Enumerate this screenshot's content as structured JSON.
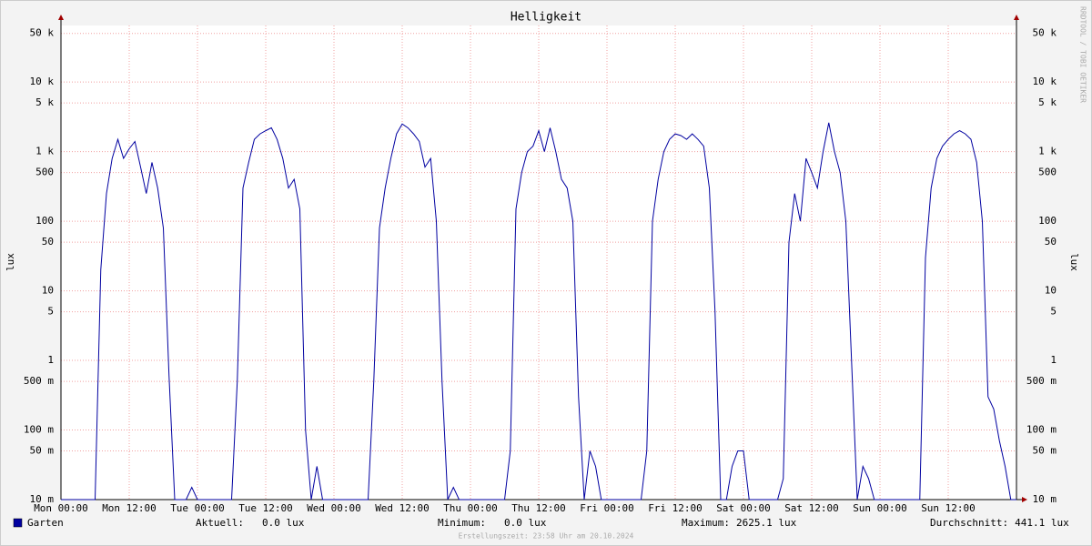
{
  "chart_data": {
    "type": "line",
    "title": "Helligkeit",
    "y_label": "lux",
    "watermark": "RRDTOOL / TOBI OETIKER",
    "footer": "Erstellungszeit: 23:58 Uhr am 20.10.2024",
    "log_scale": true,
    "grid": true,
    "xlim": [
      0,
      168
    ],
    "ylim": [
      0.01,
      65000
    ],
    "xticks": [
      {
        "value": 0,
        "label": "Mon 00:00"
      },
      {
        "value": 12,
        "label": "Mon 12:00"
      },
      {
        "value": 24,
        "label": "Tue 00:00"
      },
      {
        "value": 36,
        "label": "Tue 12:00"
      },
      {
        "value": 48,
        "label": "Wed 00:00"
      },
      {
        "value": 60,
        "label": "Wed 12:00"
      },
      {
        "value": 72,
        "label": "Thu 00:00"
      },
      {
        "value": 84,
        "label": "Thu 12:00"
      },
      {
        "value": 96,
        "label": "Fri 00:00"
      },
      {
        "value": 108,
        "label": "Fri 12:00"
      },
      {
        "value": 120,
        "label": "Sat 00:00"
      },
      {
        "value": 132,
        "label": "Sat 12:00"
      },
      {
        "value": 144,
        "label": "Sun 00:00"
      },
      {
        "value": 156,
        "label": "Sun 12:00"
      }
    ],
    "yticks": [
      {
        "value": 0.01,
        "label": "10 m"
      },
      {
        "value": 0.05,
        "label": "50 m"
      },
      {
        "value": 0.1,
        "label": "100 m"
      },
      {
        "value": 0.5,
        "label": "500 m"
      },
      1,
      5,
      10,
      50,
      100,
      500,
      {
        "value": 1000,
        "label": "1 k"
      },
      {
        "value": 5000,
        "label": "5 k"
      },
      {
        "value": 10000,
        "label": "10 k"
      },
      {
        "value": 50000,
        "label": "50 k"
      }
    ],
    "x": [
      0,
      1,
      2,
      3,
      4,
      5,
      6,
      7,
      8,
      9,
      10,
      11,
      12,
      13,
      14,
      15,
      16,
      17,
      18,
      19,
      20,
      21,
      22,
      23,
      24,
      25,
      26,
      27,
      28,
      29,
      30,
      31,
      32,
      33,
      34,
      35,
      36,
      37,
      38,
      39,
      40,
      41,
      42,
      43,
      44,
      45,
      46,
      47,
      48,
      49,
      50,
      51,
      52,
      53,
      54,
      55,
      56,
      57,
      58,
      59,
      60,
      61,
      62,
      63,
      64,
      65,
      66,
      67,
      68,
      69,
      70,
      71,
      72,
      73,
      74,
      75,
      76,
      77,
      78,
      79,
      80,
      81,
      82,
      83,
      84,
      85,
      86,
      87,
      88,
      89,
      90,
      91,
      92,
      93,
      94,
      95,
      96,
      97,
      98,
      99,
      100,
      101,
      102,
      103,
      104,
      105,
      106,
      107,
      108,
      109,
      110,
      111,
      112,
      113,
      114,
      115,
      116,
      117,
      118,
      119,
      120,
      121,
      122,
      123,
      124,
      125,
      126,
      127,
      128,
      129,
      130,
      131,
      132,
      133,
      134,
      135,
      136,
      137,
      138,
      139,
      140,
      141,
      142,
      143,
      144,
      145,
      146,
      147,
      148,
      149,
      150,
      151,
      152,
      153,
      154,
      155,
      156,
      157,
      158,
      159,
      160,
      161,
      162,
      163,
      164,
      165,
      166,
      167,
      168
    ],
    "series": [
      {
        "name": "Garten",
        "color": "#0000a0",
        "values": [
          0.01,
          0.01,
          0.01,
          0.01,
          0.01,
          0.01,
          0.01,
          20,
          250,
          800,
          1500,
          800,
          1100,
          1400,
          600,
          250,
          700,
          300,
          80,
          0.6,
          0.01,
          0.01,
          0.01,
          0.015,
          0.01,
          0.01,
          0.01,
          0.01,
          0.01,
          0.01,
          0.01,
          0.5,
          300,
          700,
          1500,
          1800,
          2000,
          2200,
          1500,
          800,
          300,
          400,
          150,
          0.1,
          0.01,
          0.03,
          0.01,
          0.01,
          0.01,
          0.01,
          0.01,
          0.01,
          0.01,
          0.01,
          0.01,
          0.5,
          80,
          300,
          800,
          1800,
          2500,
          2200,
          1800,
          1400,
          600,
          800,
          100,
          0.5,
          0.01,
          0.015,
          0.01,
          0.01,
          0.01,
          0.01,
          0.01,
          0.01,
          0.01,
          0.01,
          0.01,
          0.05,
          150,
          500,
          1000,
          1200,
          2000,
          1000,
          2200,
          1000,
          400,
          300,
          100,
          0.3,
          0.01,
          0.05,
          0.03,
          0.01,
          0.01,
          0.01,
          0.01,
          0.01,
          0.01,
          0.01,
          0.01,
          0.05,
          100,
          400,
          1000,
          1500,
          1800,
          1700,
          1500,
          1800,
          1500,
          1200,
          300,
          5,
          0.01,
          0.01,
          0.03,
          0.05,
          0.05,
          0.01,
          0.01,
          0.01,
          0.01,
          0.01,
          0.01,
          0.02,
          50,
          250,
          100,
          800,
          500,
          300,
          1000,
          2600,
          1000,
          500,
          100,
          1,
          0.01,
          0.03,
          0.02,
          0.01,
          0.01,
          0.01,
          0.01,
          0.01,
          0.01,
          0.01,
          0.01,
          0.01,
          30,
          300,
          800,
          1200,
          1500,
          1800,
          2000,
          1800,
          1500,
          700,
          100,
          0.3,
          0.2,
          0.07,
          0.03,
          0.01,
          0.01
        ]
      }
    ],
    "legend": {
      "stats": [
        {
          "label": "Aktuell:",
          "value": "0.0 lux"
        },
        {
          "label": "Minimum:",
          "value": "0.0 lux"
        },
        {
          "label": "Maximum:",
          "value": "2625.1 lux"
        },
        {
          "label": "Durchschnitt:",
          "value": "441.1 lux"
        }
      ]
    }
  }
}
